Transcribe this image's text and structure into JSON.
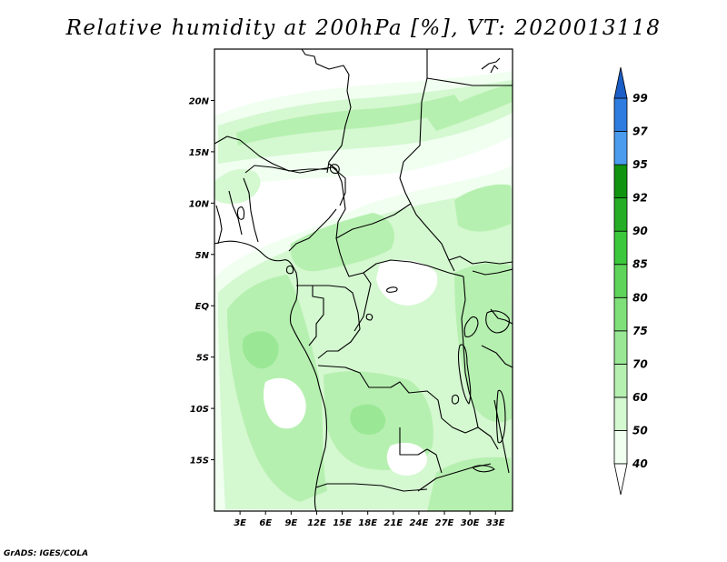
{
  "title": "Relative humidity at 200hPa [%], VT: 2020013118",
  "credit": "GrADS: IGES/COLA",
  "map": {
    "lon_range": [
      0,
      35
    ],
    "lat_range": [
      -20,
      25
    ],
    "lat_ticks": [
      {
        "lat": 20,
        "label": "20N"
      },
      {
        "lat": 15,
        "label": "15N"
      },
      {
        "lat": 10,
        "label": "10N"
      },
      {
        "lat": 5,
        "label": "5N"
      },
      {
        "lat": 0,
        "label": "EQ"
      },
      {
        "lat": -5,
        "label": "5S"
      },
      {
        "lat": -10,
        "label": "10S"
      },
      {
        "lat": -15,
        "label": "15S"
      }
    ],
    "lon_ticks": [
      {
        "lon": 3,
        "label": "3E"
      },
      {
        "lon": 6,
        "label": "6E"
      },
      {
        "lon": 9,
        "label": "9E"
      },
      {
        "lon": 12,
        "label": "12E"
      },
      {
        "lon": 15,
        "label": "15E"
      },
      {
        "lon": 18,
        "label": "18E"
      },
      {
        "lon": 21,
        "label": "21E"
      },
      {
        "lon": 24,
        "label": "24E"
      },
      {
        "lon": 27,
        "label": "27E"
      },
      {
        "lon": 30,
        "label": "30E"
      },
      {
        "lon": 33,
        "label": "33E"
      }
    ]
  },
  "colorbar": {
    "levels": [
      "40",
      "50",
      "60",
      "70",
      "75",
      "80",
      "85",
      "90",
      "92",
      "95",
      "97",
      "99"
    ],
    "colors": [
      "#f0fff0",
      "#d4f8d0",
      "#b6f0b0",
      "#9ae896",
      "#7fe07a",
      "#5ed55a",
      "#3cc83c",
      "#25ae25",
      "#109410",
      "#4b9cef",
      "#2f7ce0",
      "#1c5ec7"
    ]
  },
  "colors": {
    "rh_40_50": "#f0fff0",
    "rh_50_60": "#d4f8d0",
    "rh_60_70": "#b6f0b0",
    "rh_70_75": "#9ae896"
  }
}
